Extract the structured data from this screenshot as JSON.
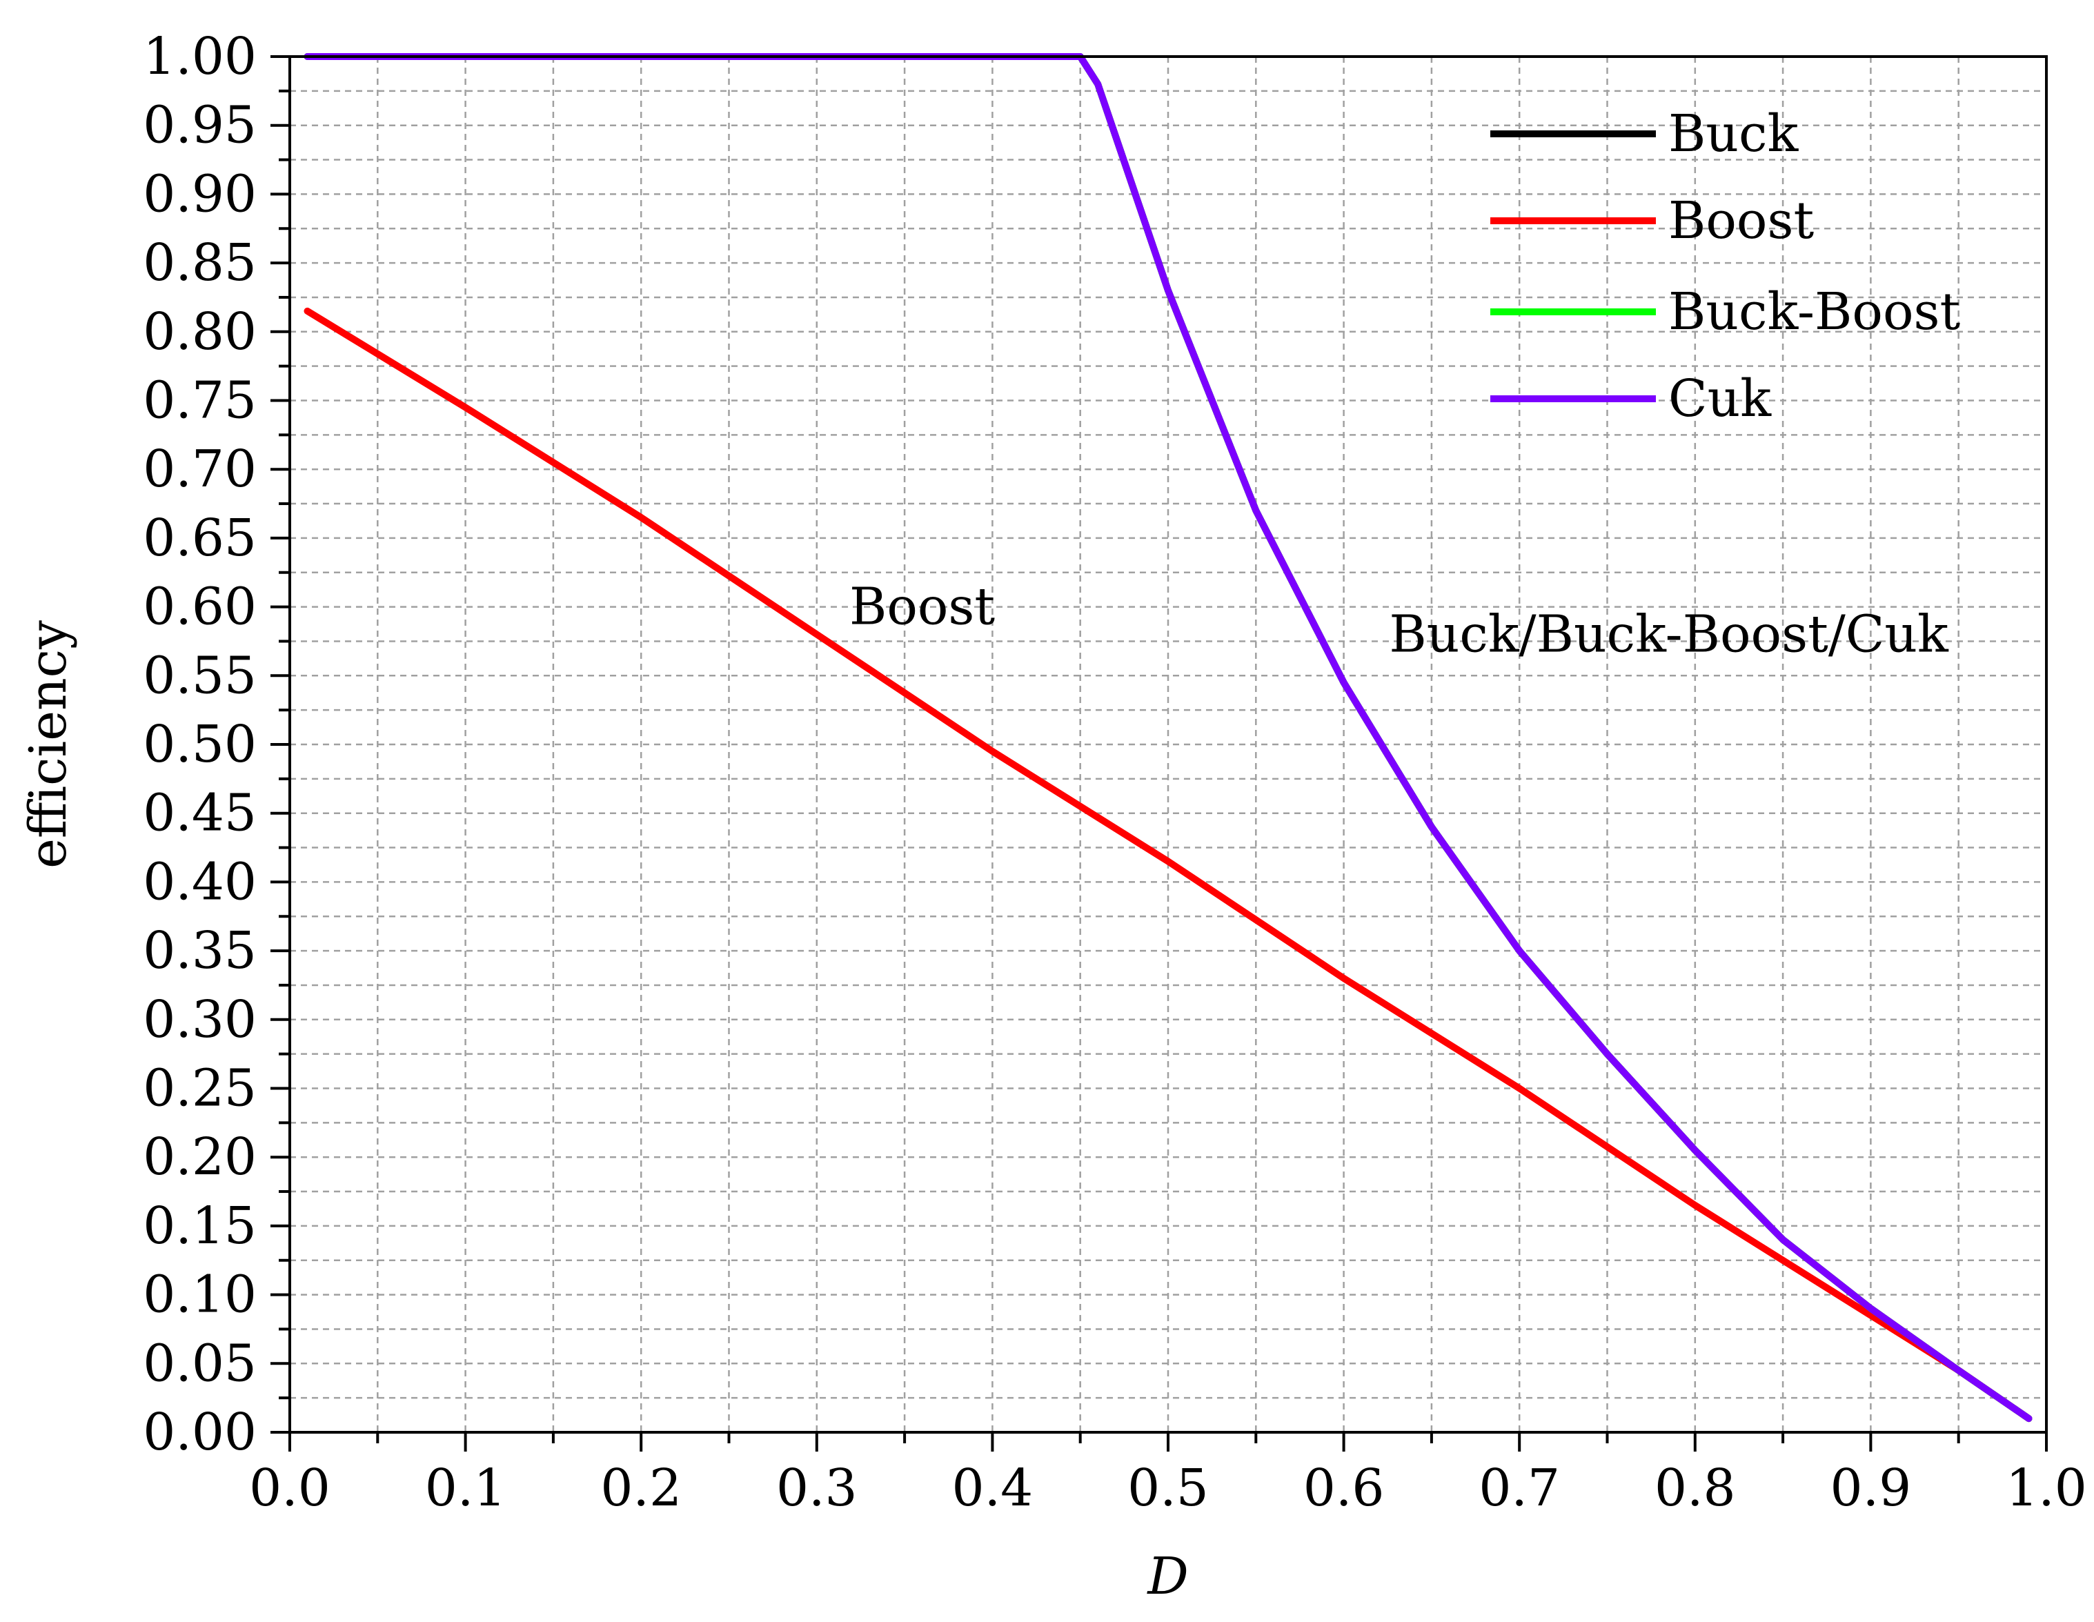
{
  "chart_data": {
    "type": "line",
    "title": "",
    "xlabel": "D",
    "ylabel": "efficiency",
    "xlim": [
      0.0,
      1.0
    ],
    "ylim": [
      0.0,
      1.0
    ],
    "x_ticks": [
      "0.0",
      "0.1",
      "0.2",
      "0.3",
      "0.4",
      "0.5",
      "0.6",
      "0.7",
      "0.8",
      "0.9",
      "1.0"
    ],
    "y_ticks": [
      "0.00",
      "0.05",
      "0.10",
      "0.15",
      "0.20",
      "0.25",
      "0.30",
      "0.35",
      "0.40",
      "0.45",
      "0.50",
      "0.55",
      "0.60",
      "0.65",
      "0.70",
      "0.75",
      "0.80",
      "0.85",
      "0.90",
      "0.95",
      "1.00"
    ],
    "grid": true,
    "legend_position": "top-right",
    "series": [
      {
        "name": "Buck",
        "color": "#000000",
        "x": [
          0.01,
          0.1,
          0.2,
          0.3,
          0.4,
          0.45,
          0.46,
          0.5,
          0.55,
          0.6,
          0.65,
          0.7,
          0.75,
          0.8,
          0.85,
          0.9,
          0.95,
          0.99
        ],
        "y": [
          1.0,
          1.0,
          1.0,
          1.0,
          1.0,
          1.0,
          0.98,
          0.83,
          0.67,
          0.545,
          0.44,
          0.35,
          0.275,
          0.205,
          0.14,
          0.09,
          0.045,
          0.01
        ]
      },
      {
        "name": "Boost",
        "color": "#ff0000",
        "x": [
          0.01,
          0.1,
          0.2,
          0.3,
          0.4,
          0.5,
          0.6,
          0.7,
          0.8,
          0.9,
          0.95,
          0.99
        ],
        "y": [
          0.815,
          0.745,
          0.665,
          0.58,
          0.495,
          0.415,
          0.33,
          0.25,
          0.165,
          0.085,
          0.045,
          0.01
        ]
      },
      {
        "name": "Buck-Boost",
        "color": "#00ff00",
        "x": [
          0.01,
          0.1,
          0.2,
          0.3,
          0.4,
          0.45,
          0.46,
          0.5,
          0.55,
          0.6,
          0.65,
          0.7,
          0.75,
          0.8,
          0.85,
          0.9,
          0.95,
          0.99
        ],
        "y": [
          1.0,
          1.0,
          1.0,
          1.0,
          1.0,
          1.0,
          0.98,
          0.83,
          0.67,
          0.545,
          0.44,
          0.35,
          0.275,
          0.205,
          0.14,
          0.09,
          0.045,
          0.01
        ]
      },
      {
        "name": "Cuk",
        "color": "#7b00ff",
        "x": [
          0.01,
          0.1,
          0.2,
          0.3,
          0.4,
          0.45,
          0.46,
          0.5,
          0.55,
          0.6,
          0.65,
          0.7,
          0.75,
          0.8,
          0.85,
          0.9,
          0.95,
          0.99
        ],
        "y": [
          1.0,
          1.0,
          1.0,
          1.0,
          1.0,
          1.0,
          0.98,
          0.83,
          0.67,
          0.545,
          0.44,
          0.35,
          0.275,
          0.205,
          0.14,
          0.09,
          0.045,
          0.01
        ]
      }
    ],
    "annotations": [
      {
        "text": "Boost",
        "x": 0.36,
        "y": 0.6
      },
      {
        "text": "Buck/Buck-Boost/Cuk",
        "x": 0.785,
        "y": 0.58
      }
    ]
  }
}
